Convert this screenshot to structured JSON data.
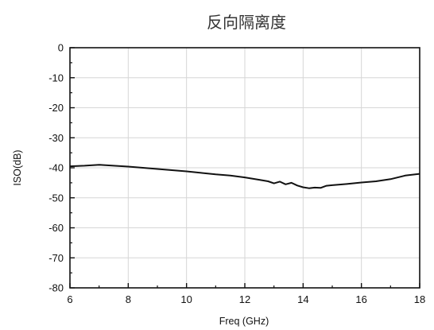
{
  "chart_data": {
    "type": "line",
    "title": "反向隔离度",
    "xlabel": "Freq (GHz)",
    "ylabel": "ISO(dB)",
    "xlim": [
      6,
      18
    ],
    "ylim": [
      -80,
      0
    ],
    "xticks": [
      6,
      8,
      10,
      12,
      14,
      16,
      18
    ],
    "yticks": [
      0,
      -10,
      -20,
      -30,
      -40,
      -50,
      -60,
      -70,
      -80
    ],
    "grid": true,
    "legend": "none",
    "colors": {
      "line": "#111111",
      "grid": "#d6d6d6",
      "axis": "#111111"
    },
    "series": [
      {
        "x": [
          6.0,
          6.5,
          7.0,
          7.5,
          8.0,
          8.5,
          9.0,
          9.5,
          10.0,
          10.5,
          11.0,
          11.5,
          12.0,
          12.5,
          12.8,
          13.0,
          13.2,
          13.4,
          13.6,
          13.8,
          14.0,
          14.2,
          14.4,
          14.6,
          14.8,
          15.0,
          15.5,
          16.0,
          16.5,
          17.0,
          17.5,
          18.0
        ],
        "y": [
          -39.5,
          -39.3,
          -39.0,
          -39.3,
          -39.6,
          -40.0,
          -40.4,
          -40.8,
          -41.2,
          -41.7,
          -42.2,
          -42.6,
          -43.2,
          -44.0,
          -44.5,
          -45.2,
          -44.6,
          -45.5,
          -45.0,
          -45.9,
          -46.5,
          -46.8,
          -46.6,
          -46.7,
          -46.0,
          -45.8,
          -45.4,
          -44.9,
          -44.5,
          -43.8,
          -42.6,
          -42.0
        ]
      }
    ]
  }
}
